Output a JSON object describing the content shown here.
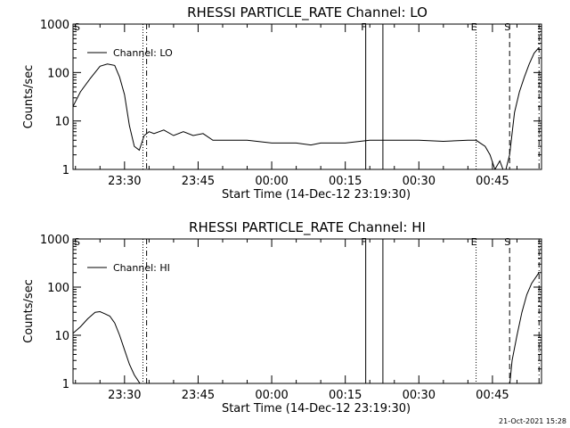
{
  "footer_stamp": "21-Oct-2021 15:28",
  "chart_data": [
    {
      "type": "line",
      "title": "RHESSI PARTICLE_RATE Channel: LO",
      "xlabel": "Start Time (14-Dec-12 23:19:30)",
      "ylabel": "Counts/sec",
      "yscale": "log",
      "ylim": [
        1,
        1000
      ],
      "yticks": [
        1,
        10,
        100,
        1000
      ],
      "ytick_labels": [
        "1",
        "10",
        "100",
        "1000"
      ],
      "xlim": [
        "23:19:30",
        "00:55:00"
      ],
      "xticks": [
        "23:30",
        "23:45",
        "00:00",
        "00:15",
        "00:30",
        "00:45"
      ],
      "legend": {
        "label": "Channel: LO",
        "placement": "top-left"
      },
      "markers": [
        {
          "time": "23:33:45",
          "label": "",
          "style": "dotted"
        },
        {
          "time": "23:34:30",
          "label": "",
          "style": "dashdot"
        },
        {
          "time": "00:19:10",
          "label": "F",
          "style": "solid"
        },
        {
          "time": "00:22:40",
          "label": "",
          "style": "solid"
        },
        {
          "time": "00:41:40",
          "label": "E",
          "style": "dotted"
        },
        {
          "time": "00:48:30",
          "label": "S",
          "style": "dashed"
        },
        {
          "time": "00:54:30",
          "label": "",
          "style": "dashdot"
        }
      ],
      "corner_label": "S",
      "series": [
        {
          "times": [
            "23:19:30",
            "23:21:00",
            "23:23:00",
            "23:25:00",
            "23:26:30",
            "23:28:00",
            "23:29:00",
            "23:30:00",
            "23:31:00",
            "23:32:00",
            "23:33:00",
            "23:34:00",
            "23:35:00",
            "23:36:00",
            "23:38:00",
            "23:40:00",
            "23:42:00",
            "23:44:00",
            "23:46:00",
            "23:48:00",
            "23:50:00",
            "23:55:00",
            "00:00:00",
            "00:05:00",
            "00:08:00",
            "00:10:00",
            "00:15:00",
            "00:20:00",
            "00:25:00",
            "00:30:00",
            "00:35:00",
            "00:40:00",
            "00:41:40",
            "00:42:30",
            "00:43:30",
            "00:44:30",
            "00:45:30",
            "00:46:30",
            "00:47:30",
            "00:48:30",
            "00:49:30",
            "00:50:30",
            "00:51:30",
            "00:52:30",
            "00:53:30",
            "00:54:30"
          ],
          "values": [
            20,
            40,
            75,
            135,
            150,
            140,
            80,
            35,
            8,
            3,
            2.5,
            5,
            6,
            5.5,
            6.5,
            5,
            6,
            5,
            5.5,
            4,
            4,
            4,
            3.5,
            3.5,
            3.2,
            3.5,
            3.5,
            4,
            4,
            4,
            3.8,
            4,
            4,
            3.5,
            3,
            2,
            1,
            1.5,
            0.8,
            2,
            15,
            40,
            80,
            150,
            250,
            330
          ]
        }
      ]
    },
    {
      "type": "line",
      "title": "RHESSI PARTICLE_RATE Channel: HI",
      "xlabel": "Start Time (14-Dec-12 23:19:30)",
      "ylabel": "Counts/sec",
      "yscale": "log",
      "ylim": [
        1,
        1000
      ],
      "yticks": [
        1,
        10,
        100,
        1000
      ],
      "ytick_labels": [
        "1",
        "10",
        "100",
        "1000"
      ],
      "xlim": [
        "23:19:30",
        "00:55:00"
      ],
      "xticks": [
        "23:30",
        "23:45",
        "00:00",
        "00:15",
        "00:30",
        "00:45"
      ],
      "legend": {
        "label": "Channel: HI",
        "placement": "top-left"
      },
      "markers": [
        {
          "time": "23:33:45",
          "label": "",
          "style": "dotted"
        },
        {
          "time": "23:34:30",
          "label": "",
          "style": "dashdot"
        },
        {
          "time": "00:19:10",
          "label": "F",
          "style": "solid"
        },
        {
          "time": "00:22:40",
          "label": "",
          "style": "solid"
        },
        {
          "time": "00:41:40",
          "label": "E",
          "style": "dotted"
        },
        {
          "time": "00:48:30",
          "label": "S",
          "style": "dashed"
        },
        {
          "time": "00:54:30",
          "label": "",
          "style": "dashdot"
        }
      ],
      "corner_label": "S",
      "series": [
        {
          "times": [
            "23:19:30",
            "23:21:00",
            "23:22:30",
            "23:24:00",
            "23:25:00",
            "23:26:00",
            "23:27:00",
            "23:28:00",
            "23:29:00",
            "23:30:00",
            "23:31:00",
            "23:32:00",
            "23:33:00",
            "23:33:30",
            "00:48:30",
            "00:49:00",
            "00:50:00",
            "00:51:00",
            "00:52:00",
            "00:53:00",
            "00:54:30"
          ],
          "values": [
            11,
            15,
            22,
            30,
            31,
            28,
            25,
            18,
            10,
            5,
            2.5,
            1.5,
            1.05,
            0.9,
            0.9,
            3,
            10,
            30,
            70,
            120,
            200
          ]
        }
      ]
    }
  ]
}
